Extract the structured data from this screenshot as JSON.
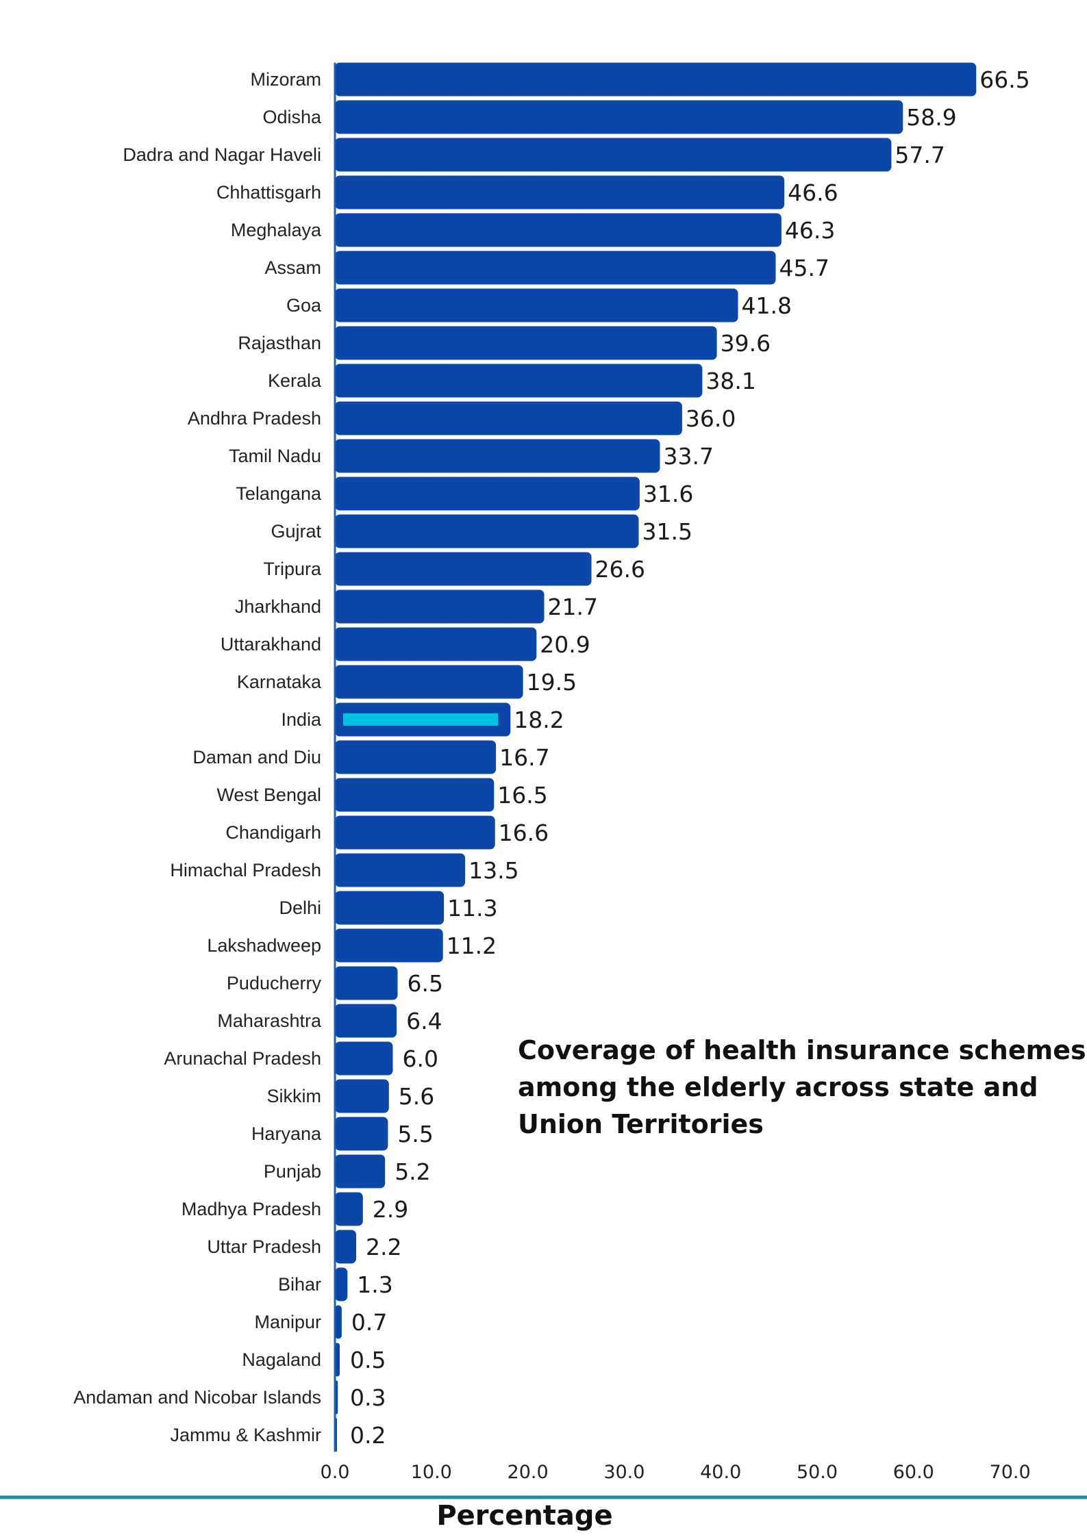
{
  "colors": {
    "bar": "#0a47a8",
    "highlight_inner": "#00c2e0",
    "axis": "#1f5fb0",
    "bottom_rule": "#1a8fa0"
  },
  "chart_data": {
    "type": "bar",
    "orientation": "horizontal",
    "title": "Coverage of health insurance schemes among the elderly across state and Union Territories",
    "title_lines": [
      "Coverage of health insurance schemes",
      "among the elderly across state and",
      "Union Territories"
    ],
    "xlabel": "Percentage",
    "ylabel": "",
    "xlim": [
      0,
      70
    ],
    "x_ticks": [
      "0.0",
      "10.0",
      "20.0",
      "30.0",
      "40.0",
      "50.0",
      "60.0",
      "70.0"
    ],
    "grid": false,
    "highlight_category": "India",
    "categories": [
      "Mizoram",
      "Odisha",
      "Dadra and Nagar Haveli",
      "Chhattisgarh",
      "Meghalaya",
      "Assam",
      "Goa",
      "Rajasthan",
      "Kerala",
      "Andhra Pradesh",
      "Tamil Nadu",
      "Telangana",
      "Gujrat",
      "Tripura",
      "Jharkhand",
      "Uttarakhand",
      "Karnataka",
      "India",
      "Daman and Diu",
      "West Bengal",
      "Chandigarh",
      "Himachal Pradesh",
      "Delhi",
      "Lakshadweep",
      "Puducherry",
      "Maharashtra",
      "Arunachal Pradesh",
      "Sikkim",
      "Haryana",
      "Punjab",
      "Madhya Pradesh",
      "Uttar Pradesh",
      "Bihar",
      "Manipur",
      "Nagaland",
      "Andaman and Nicobar Islands",
      "Jammu & Kashmir"
    ],
    "values": [
      66.5,
      58.9,
      57.7,
      46.6,
      46.3,
      45.7,
      41.8,
      39.6,
      38.1,
      36.0,
      33.7,
      31.6,
      31.5,
      26.6,
      21.7,
      20.9,
      19.5,
      18.2,
      16.7,
      16.5,
      16.6,
      13.5,
      11.3,
      11.2,
      6.5,
      6.4,
      6.0,
      5.6,
      5.5,
      5.2,
      2.9,
      2.2,
      1.3,
      0.7,
      0.5,
      0.3,
      0.2
    ],
    "value_labels": [
      "66.5",
      "58.9",
      "57.7",
      "46.6",
      "46.3",
      "45.7",
      "41.8",
      "39.6",
      "38.1",
      "36.0",
      "33.7",
      "31.6",
      "31.5",
      "26.6",
      "21.7",
      "20.9",
      "19.5",
      "18.2",
      "16.7",
      "16.5",
      "16.6",
      "13.5",
      "11.3",
      "11.2",
      "6.5",
      "6.4",
      "6.0",
      "5.6",
      "5.5",
      "5.2",
      "2.9",
      "2.2",
      "1.3",
      "0.7",
      "0.5",
      "0.3",
      "0.2"
    ]
  }
}
